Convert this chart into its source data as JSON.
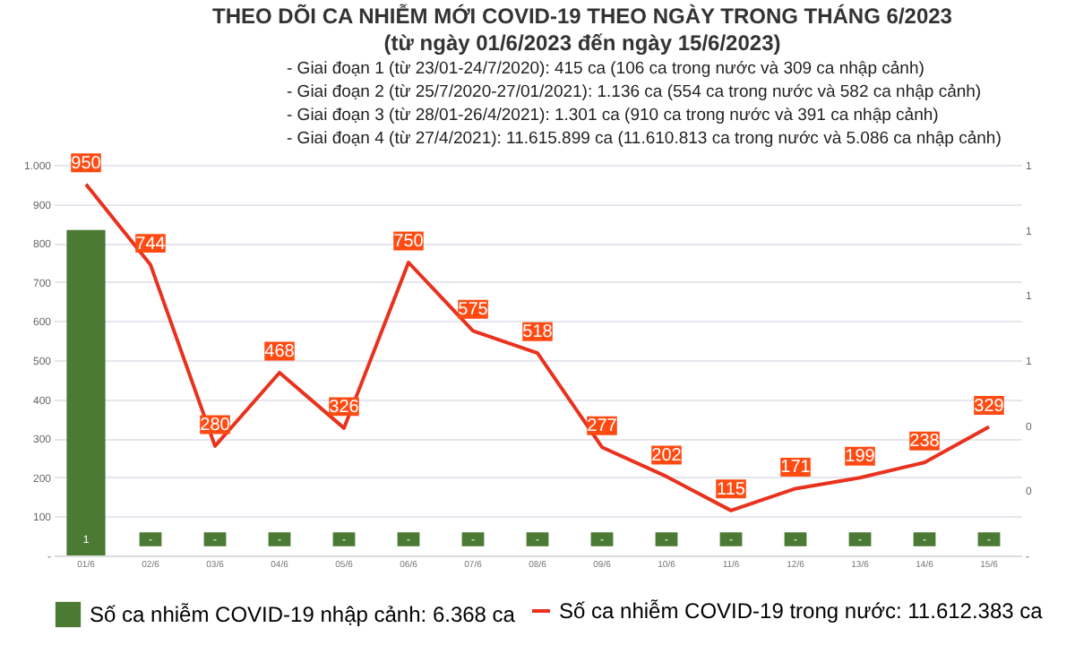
{
  "chart_data": {
    "type": "bar",
    "title": "THEO DÕI CA NHIỄM MỚI COVID-19 THEO NGÀY TRONG THÁNG 6/2023",
    "subtitle": "(từ ngày 01/6/2023 đến ngày 15/6/2023)",
    "annotations": [
      "- Giai đoạn 1 (từ 23/01-24/7/2020): 415 ca (106 ca trong nước và 309 ca nhập cảnh)",
      "- Giai đoạn 2 (từ 25/7/2020-27/01/2021): 1.136 ca (554 ca trong nước và 582 ca nhập cảnh)",
      "- Giai đoạn 3 (từ 28/01-26/4/2021): 1.301 ca (910 ca trong nước và 391 ca nhập cảnh)",
      "- Giai đoạn 4 (từ 27/4/2021): 11.615.899 ca (11.610.813 ca trong nước và 5.086 ca nhập cảnh)"
    ],
    "categories": [
      "01/6",
      "02/6",
      "03/6",
      "04/6",
      "05/6",
      "06/6",
      "07/6",
      "08/6",
      "09/6",
      "10/6",
      "11/6",
      "12/6",
      "13/6",
      "14/6",
      "15/6"
    ],
    "series": [
      {
        "name": "Số ca nhiễm COVID-19 nhập cảnh: 6.368 ca",
        "axis": "y2",
        "color": "#4b7a34",
        "values": [
          1,
          0,
          0,
          0,
          0,
          0,
          0,
          0,
          0,
          0,
          0,
          0,
          0,
          0,
          0
        ],
        "value_labels": [
          "1",
          "-",
          "-",
          "-",
          "-",
          "-",
          "-",
          "-",
          "-",
          "-",
          "-",
          "-",
          "-",
          "-",
          "-"
        ]
      },
      {
        "name": "Số ca nhiễm COVID-19 trong nước: 11.612.383 ca",
        "type": "line",
        "color": "#e8321e",
        "values": [
          950,
          744,
          280,
          468,
          326,
          750,
          575,
          518,
          277,
          202,
          115,
          171,
          199,
          238,
          329
        ],
        "value_labels": [
          "950",
          "744",
          "280",
          "468",
          "326",
          "750",
          "575",
          "518",
          "277",
          "202",
          "115",
          "171",
          "199",
          "238",
          "329"
        ]
      }
    ],
    "ylim": [
      0,
      1000
    ],
    "yticks": [
      {
        "value": 0,
        "label": "-"
      },
      100,
      200,
      300,
      400,
      500,
      600,
      700,
      800,
      900,
      {
        "value": 1000,
        "label": "1.000"
      }
    ],
    "y2lim": [
      0,
      1.2
    ],
    "y2ticks": [
      {
        "value": 0,
        "label": "-"
      },
      {
        "value": 0.2,
        "label": "0"
      },
      {
        "value": 0.4,
        "label": "0"
      },
      {
        "value": 0.6,
        "label": "1"
      },
      {
        "value": 0.8,
        "label": "1"
      },
      {
        "value": 1.0,
        "label": "1"
      },
      {
        "value": 1.2,
        "label": "1"
      }
    ],
    "grid": "y",
    "legend": "bottom",
    "marker": "none",
    "line_style": "solid"
  }
}
